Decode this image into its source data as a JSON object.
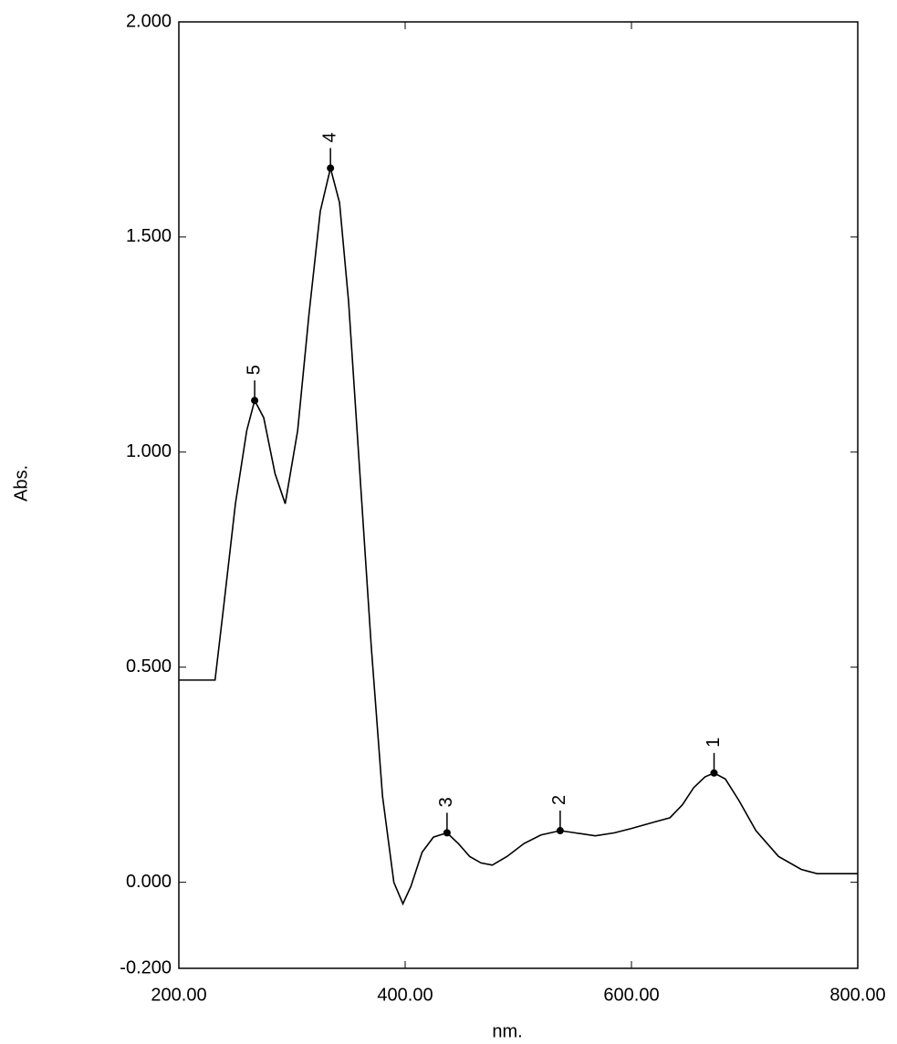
{
  "chart_data": {
    "type": "line",
    "xlabel": "nm.",
    "ylabel": "Abs.",
    "xlim": [
      200,
      800
    ],
    "xticks": [
      {
        "value": 200,
        "label": "200.00"
      },
      {
        "value": 400,
        "label": "400.00"
      },
      {
        "value": 600,
        "label": "600.00"
      },
      {
        "value": 800,
        "label": "800.00"
      }
    ],
    "ylim": [
      -0.2,
      2
    ],
    "yticks": [
      {
        "value": -0.2,
        "label": "-0.200"
      },
      {
        "value": 0,
        "label": "0.000"
      },
      {
        "value": 0.5,
        "label": "0.500"
      },
      {
        "value": 1,
        "label": "1.000"
      },
      {
        "value": 1.5,
        "label": "1.500"
      },
      {
        "value": 2,
        "label": "2.000"
      }
    ],
    "color": "#000000",
    "x": [
      200,
      232,
      240,
      250,
      260,
      267,
      275,
      285,
      294,
      305,
      315,
      325,
      334,
      342,
      350,
      360,
      370,
      380,
      390,
      398,
      405,
      415,
      425,
      437,
      447,
      457,
      467,
      477,
      490,
      505,
      520,
      537,
      550,
      568,
      585,
      600,
      620,
      634,
      645,
      655,
      665,
      673,
      683,
      695,
      710,
      730,
      750,
      764,
      780,
      800
    ],
    "values": [
      0.47,
      0.47,
      0.65,
      0.88,
      1.05,
      1.12,
      1.08,
      0.95,
      0.88,
      1.05,
      1.32,
      1.56,
      1.66,
      1.58,
      1.35,
      0.95,
      0.55,
      0.2,
      0.0,
      -0.05,
      -0.01,
      0.07,
      0.105,
      0.115,
      0.09,
      0.06,
      0.045,
      0.04,
      0.06,
      0.09,
      0.11,
      0.12,
      0.115,
      0.108,
      0.115,
      0.125,
      0.14,
      0.15,
      0.18,
      0.22,
      0.245,
      0.254,
      0.24,
      0.19,
      0.12,
      0.06,
      0.03,
      0.02,
      0.02,
      0.02
    ],
    "peaks": [
      {
        "label": "1",
        "x": 673,
        "y": 0.254
      },
      {
        "label": "2",
        "x": 537,
        "y": 0.12
      },
      {
        "label": "3",
        "x": 437,
        "y": 0.115
      },
      {
        "label": "4",
        "x": 334,
        "y": 1.66
      },
      {
        "label": "5",
        "x": 267,
        "y": 1.12
      }
    ]
  }
}
